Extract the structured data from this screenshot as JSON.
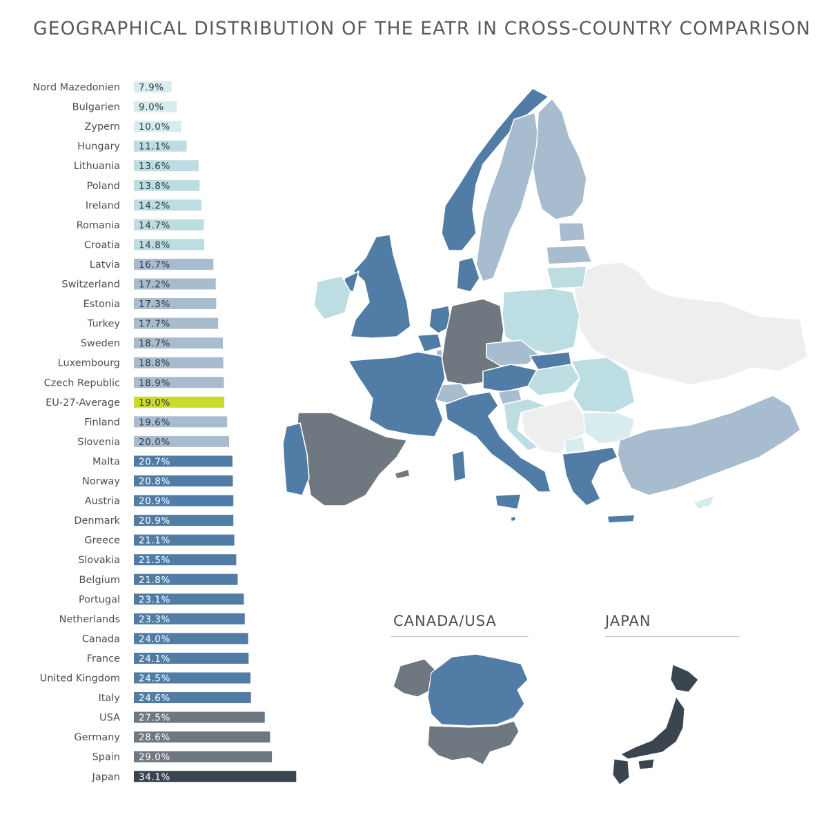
{
  "title": "GEOGRAPHICAL DISTRIBUTION OF THE EATR IN CROSS-COUNTRY COMPARISON",
  "insets": {
    "na_title": "CANADA/USA",
    "japan_title": "JAPAN"
  },
  "colors": {
    "lightest": "#d7ecee",
    "light": "#bcdde1",
    "mid": "#a7bccf",
    "blue": "#507ca5",
    "gray": "#6f7780",
    "dark": "#3b4550",
    "highlight": "#cadb2c",
    "no_data": "#eeeeee"
  },
  "chart_data": {
    "type": "bar",
    "orientation": "horizontal",
    "title": "GEOGRAPHICAL DISTRIBUTION OF THE EATR IN CROSS-COUNTRY COMPARISON",
    "unit": "%",
    "categories": [
      "Nord Mazedonien",
      "Bulgarien",
      "Zypern",
      "Hungary",
      "Lithuania",
      "Poland",
      "Ireland",
      "Romania",
      "Croatia",
      "Latvia",
      "Switzerland",
      "Estonia",
      "Turkey",
      "Sweden",
      "Luxembourg",
      "Czech Republic",
      "EU-27-Average",
      "Finland",
      "Slovenia",
      "Malta",
      "Norway",
      "Austria",
      "Denmark",
      "Greece",
      "Slovakia",
      "Belgium",
      "Portugal",
      "Netherlands",
      "Canada",
      "France",
      "United Kingdom",
      "Italy",
      "USA",
      "Germany",
      "Spain",
      "Japan"
    ],
    "values": [
      7.9,
      9.0,
      10.0,
      11.1,
      13.6,
      13.8,
      14.2,
      14.7,
      14.8,
      16.7,
      17.2,
      17.3,
      17.7,
      18.7,
      18.8,
      18.9,
      19.0,
      19.6,
      20.0,
      20.7,
      20.8,
      20.9,
      20.9,
      21.1,
      21.5,
      21.8,
      23.1,
      23.3,
      24.0,
      24.1,
      24.5,
      24.6,
      27.5,
      28.6,
      29.0,
      34.1
    ],
    "value_labels": [
      "7.9%",
      "9.0%",
      "10.0%",
      "11.1%",
      "13.6%",
      "13.8%",
      "14.2%",
      "14.7%",
      "14.8%",
      "16.7%",
      "17.2%",
      "17.3%",
      "17.7%",
      "18.7%",
      "18.8%",
      "18.9%",
      "19.0%",
      "19.6%",
      "20.0%",
      "20.7%",
      "20.8%",
      "20.9%",
      "20.9%",
      "21.1%",
      "21.5%",
      "21.8%",
      "23.1%",
      "23.3%",
      "24.0%",
      "24.1%",
      "24.5%",
      "24.6%",
      "27.5%",
      "28.6%",
      "29.0%",
      "34.1%"
    ],
    "color_groups": [
      "lightest",
      "lightest",
      "lightest",
      "light",
      "light",
      "light",
      "light",
      "light",
      "light",
      "mid",
      "mid",
      "mid",
      "mid",
      "mid",
      "mid",
      "mid",
      "highlight",
      "mid",
      "mid",
      "blue",
      "blue",
      "blue",
      "blue",
      "blue",
      "blue",
      "blue",
      "blue",
      "blue",
      "blue",
      "blue",
      "blue",
      "blue",
      "gray",
      "gray",
      "gray",
      "dark"
    ],
    "xlim": [
      0,
      34.1
    ],
    "grid": false,
    "legend": "none"
  }
}
